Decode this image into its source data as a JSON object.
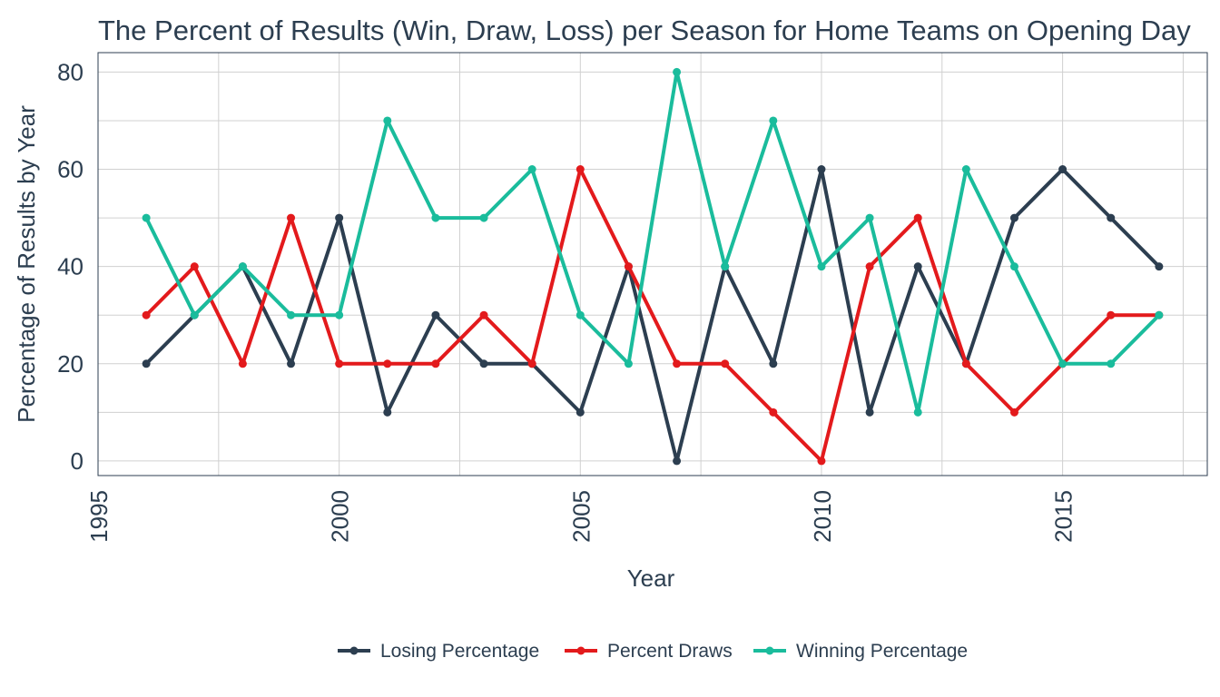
{
  "chart_data": {
    "type": "line",
    "title": "The Percent of Results (Win, Draw, Loss) per Season for Home Teams on Opening Day",
    "xlabel": "Year",
    "ylabel": "Percentage of Results by Year",
    "xlim": [
      1995,
      2018
    ],
    "ylim": [
      -3,
      84
    ],
    "x_ticks": [
      1995,
      2000,
      2005,
      2010,
      2015
    ],
    "y_ticks": [
      0,
      20,
      40,
      60,
      80
    ],
    "grid": true,
    "legend_position": "bottom",
    "x": [
      1996,
      1997,
      1998,
      1999,
      2000,
      2001,
      2002,
      2003,
      2004,
      2005,
      2006,
      2007,
      2008,
      2009,
      2010,
      2011,
      2012,
      2013,
      2014,
      2015,
      2016,
      2017
    ],
    "series": [
      {
        "name": "Losing Percentage",
        "color": "#2c3e50",
        "values": [
          20,
          30,
          40,
          20,
          50,
          10,
          30,
          20,
          20,
          10,
          40,
          0,
          40,
          20,
          60,
          10,
          40,
          20,
          50,
          60,
          50,
          40
        ]
      },
      {
        "name": "Percent Draws",
        "color": "#e31a1c",
        "values": [
          30,
          40,
          20,
          50,
          20,
          20,
          20,
          30,
          20,
          60,
          40,
          20,
          20,
          10,
          0,
          40,
          50,
          20,
          10,
          20,
          30,
          30
        ]
      },
      {
        "name": "Winning Percentage",
        "color": "#1abc9c",
        "values": [
          50,
          30,
          40,
          30,
          30,
          70,
          50,
          50,
          60,
          30,
          20,
          80,
          40,
          70,
          40,
          50,
          10,
          60,
          40,
          20,
          20,
          30
        ]
      }
    ]
  }
}
